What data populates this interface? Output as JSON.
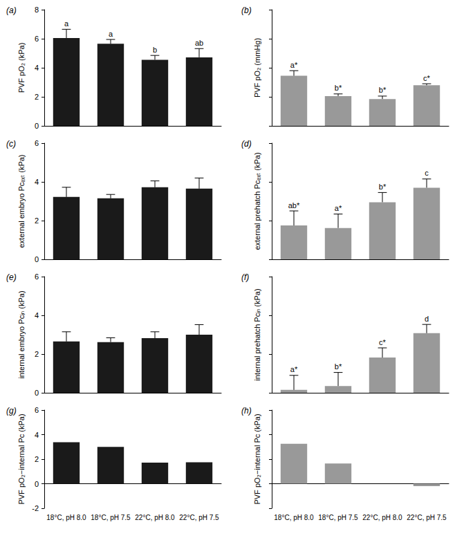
{
  "chart_data": [
    {
      "type": "bar",
      "title": "(a)",
      "y_label": "PVF pO₂ (kPa)",
      "categories": [
        "18°C, pH 8.0",
        "18°C, pH 7.5",
        "22°C, pH 8.0",
        "22°C, pH 7.5"
      ],
      "values": [
        6.05,
        5.65,
        4.55,
        4.72
      ],
      "errors": [
        0.6,
        0.3,
        0.3,
        0.6
      ],
      "annotations": [
        "a",
        "a",
        "b",
        "ab"
      ],
      "color": "#1a1a1a",
      "ylim": [
        0,
        8
      ],
      "yticks": [
        0,
        2,
        4,
        6,
        8
      ],
      "grid": false,
      "tick_labels": "y"
    },
    {
      "type": "bar",
      "title": "(b)",
      "y_label": "PVF pO₂ (mmHg)",
      "categories": [
        "18°C, pH 8.0",
        "18°C, pH 7.5",
        "22°C, pH 8.0",
        "22°C, pH 7.5"
      ],
      "values": [
        3.45,
        2.05,
        1.85,
        2.8
      ],
      "errors": [
        0.35,
        0.15,
        0.2,
        0.1
      ],
      "annotations": [
        "a*",
        "b*",
        "b*",
        "c*"
      ],
      "color": "#999999",
      "ylim": [
        0,
        8
      ],
      "yticks": [
        0,
        2,
        4,
        6,
        8
      ],
      "grid": false,
      "tick_labels": false
    },
    {
      "type": "bar",
      "title": "(c)",
      "y_label": "external embryo Pcₑₓₜ (kPa)",
      "categories": [
        "18°C, pH 8.0",
        "18°C, pH 7.5",
        "22°C, pH 8.0",
        "22°C, pH 7.5"
      ],
      "values": [
        3.22,
        3.15,
        3.72,
        3.65
      ],
      "errors": [
        0.5,
        0.2,
        0.33,
        0.55
      ],
      "color": "#1a1a1a",
      "ylim": [
        0,
        6
      ],
      "yticks": [
        0,
        2,
        4,
        6
      ],
      "grid": false,
      "tick_labels": "y"
    },
    {
      "type": "bar",
      "title": "(d)",
      "y_label": "external prehatch Pcₑₓₜ (kPa)",
      "categories": [
        "18°C, pH 8.0",
        "18°C, pH 7.5",
        "22°C, pH 8.0",
        "22°C, pH 7.5"
      ],
      "values": [
        1.75,
        1.62,
        2.95,
        3.7
      ],
      "errors": [
        0.75,
        0.72,
        0.5,
        0.45
      ],
      "annotations": [
        "ab*",
        "a*",
        "b*",
        "c"
      ],
      "color": "#999999",
      "ylim": [
        0,
        6
      ],
      "yticks": [
        0,
        2,
        4,
        6
      ],
      "grid": false,
      "tick_labels": false
    },
    {
      "type": "bar",
      "title": "(e)",
      "y_label": "internal embryo Pcᵢₙ (kPa)",
      "categories": [
        "18°C, pH 8.0",
        "18°C, pH 7.5",
        "22°C, pH 8.0",
        "22°C, pH 7.5"
      ],
      "values": [
        2.65,
        2.62,
        2.82,
        3.0
      ],
      "errors": [
        0.5,
        0.22,
        0.33,
        0.52
      ],
      "color": "#1a1a1a",
      "ylim": [
        0,
        6
      ],
      "yticks": [
        0,
        2,
        4,
        6
      ],
      "grid": false,
      "tick_labels": "y"
    },
    {
      "type": "bar",
      "title": "(f)",
      "y_label": "internal prehatch Pcᵢₙ (kPa)",
      "categories": [
        "18°C, pH 8.0",
        "18°C, pH 7.5",
        "22°C, pH 8.0",
        "22°C, pH 7.5"
      ],
      "values": [
        0.15,
        0.35,
        1.82,
        3.08
      ],
      "errors": [
        0.75,
        0.7,
        0.5,
        0.45
      ],
      "annotations": [
        "a*",
        "b*",
        "c*",
        "d"
      ],
      "color": "#999999",
      "ylim": [
        0,
        6
      ],
      "yticks": [
        0,
        2,
        4,
        6
      ],
      "grid": false,
      "tick_labels": false
    },
    {
      "type": "bar",
      "title": "(g)",
      "y_label": "PVF pO₂−internal Pc (kPa)",
      "categories": [
        "18°C, pH 8.0",
        "18°C, pH 7.5",
        "22°C, pH 8.0",
        "22°C, pH 7.5"
      ],
      "values": [
        3.38,
        3.0,
        1.72,
        1.75
      ],
      "color": "#1a1a1a",
      "ylim": [
        -2,
        6
      ],
      "yticks": [
        -2,
        0,
        2,
        4,
        6
      ],
      "grid": false
    },
    {
      "type": "bar",
      "title": "(h)",
      "y_label": "PVF pO₂−internal Pc (kPa)",
      "categories": [
        "18°C, pH 8.0",
        "18°C, pH 7.5",
        "22°C, pH 8.0",
        "22°C, pH 7.5"
      ],
      "values": [
        3.25,
        1.65,
        0.0,
        -0.2
      ],
      "color": "#999999",
      "ylim": [
        -2,
        6
      ],
      "yticks": [
        -2,
        0,
        2,
        4,
        6
      ],
      "grid": false,
      "tick_labels": "x"
    }
  ]
}
